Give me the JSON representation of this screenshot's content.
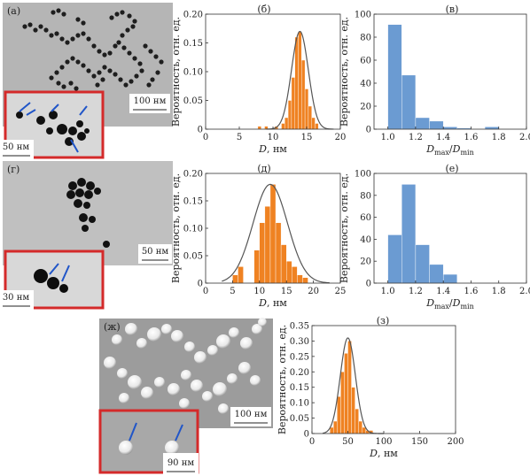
{
  "colors": {
    "orange_bar": "#ef8222",
    "blue_bar": "#6b9bd2",
    "fit_curve": "#555555",
    "inset_border": "#d42a2a",
    "arrow": "#2055c8"
  },
  "micrographs": [
    {
      "label": "(а)",
      "scalebar": "100 нм",
      "inset_scalebar": "50 нм"
    },
    {
      "label": "(г)",
      "scalebar": "50 нм",
      "inset_scalebar": "30 нм"
    },
    {
      "label": "(ж)",
      "scalebar": "100 нм",
      "inset_scalebar": "90 нм"
    }
  ],
  "chart_data": [
    {
      "panel": "(б)",
      "type": "bar",
      "xlabel": "D, нм",
      "ylabel": "Вероятность, отн. ед.",
      "xlim": [
        0,
        20
      ],
      "ylim": [
        0,
        0.2
      ],
      "xticks": [
        "0",
        "5",
        "10",
        "15",
        "20"
      ],
      "yticks": [
        "0",
        "0.05",
        "0.10",
        "0.15",
        "0.20"
      ],
      "bin_width": 0.5,
      "bars": [
        {
          "x": 8.0,
          "y": 0.005
        },
        {
          "x": 9.0,
          "y": 0.005
        },
        {
          "x": 10.5,
          "y": 0.005
        },
        {
          "x": 11.5,
          "y": 0.01
        },
        {
          "x": 12.0,
          "y": 0.02
        },
        {
          "x": 12.5,
          "y": 0.05
        },
        {
          "x": 13.0,
          "y": 0.09
        },
        {
          "x": 13.5,
          "y": 0.16
        },
        {
          "x": 14.0,
          "y": 0.17
        },
        {
          "x": 14.5,
          "y": 0.12
        },
        {
          "x": 15.0,
          "y": 0.07
        },
        {
          "x": 15.5,
          "y": 0.04
        },
        {
          "x": 16.0,
          "y": 0.02
        },
        {
          "x": 16.5,
          "y": 0.01
        }
      ],
      "fit": {
        "mean": 14.0,
        "sigma": 1.25,
        "peak": 0.17,
        "range": [
          9,
          19
        ]
      }
    },
    {
      "panel": "(в)",
      "type": "bar",
      "xlabel": "Dmax/Dmin",
      "ylabel": "Вероятность, отн. ед.",
      "xlim": [
        0.9,
        2.0
      ],
      "ylim": [
        0,
        100
      ],
      "xticks": [
        "1.0",
        "1.2",
        "1.4",
        "1.6",
        "1.8",
        "2.0"
      ],
      "yticks": [
        "0",
        "20",
        "40",
        "60",
        "80",
        "100"
      ],
      "bin_width": 0.1,
      "bars": [
        {
          "x": 1.05,
          "y": 91
        },
        {
          "x": 1.15,
          "y": 47
        },
        {
          "x": 1.25,
          "y": 10
        },
        {
          "x": 1.35,
          "y": 7
        },
        {
          "x": 1.45,
          "y": 2
        },
        {
          "x": 1.55,
          "y": 1
        },
        {
          "x": 1.75,
          "y": 2
        }
      ]
    },
    {
      "panel": "(д)",
      "type": "bar",
      "xlabel": "D, нм",
      "ylabel": "Вероятность, отн. ед.",
      "xlim": [
        0,
        25
      ],
      "ylim": [
        0,
        0.2
      ],
      "xticks": [
        "0",
        "5",
        "10",
        "15",
        "20",
        "25"
      ],
      "yticks": [
        "0",
        "0.05",
        "0.10",
        "0.15",
        "0.20"
      ],
      "bin_width": 1,
      "bars": [
        {
          "x": 5.5,
          "y": 0.015
        },
        {
          "x": 6.5,
          "y": 0.03
        },
        {
          "x": 9.5,
          "y": 0.06
        },
        {
          "x": 10.5,
          "y": 0.11
        },
        {
          "x": 11.5,
          "y": 0.14
        },
        {
          "x": 12.5,
          "y": 0.18
        },
        {
          "x": 13.5,
          "y": 0.11
        },
        {
          "x": 14.5,
          "y": 0.07
        },
        {
          "x": 15.5,
          "y": 0.04
        },
        {
          "x": 16.5,
          "y": 0.03
        },
        {
          "x": 17.5,
          "y": 0.015
        },
        {
          "x": 18.5,
          "y": 0.01
        }
      ],
      "fit": {
        "mean": 12.0,
        "sigma": 3.2,
        "peak": 0.18,
        "range": [
          3,
          23
        ]
      }
    },
    {
      "panel": "(е)",
      "type": "bar",
      "xlabel": "Dmax/Dmin",
      "ylabel": "Вероятность, отн. ед.",
      "xlim": [
        0.9,
        2.0
      ],
      "ylim": [
        0,
        100
      ],
      "xticks": [
        "1.0",
        "1.2",
        "1.4",
        "1.6",
        "1.8",
        "2.0"
      ],
      "yticks": [
        "0",
        "20",
        "40",
        "60",
        "80",
        "100"
      ],
      "bin_width": 0.1,
      "bars": [
        {
          "x": 1.05,
          "y": 44
        },
        {
          "x": 1.15,
          "y": 90
        },
        {
          "x": 1.25,
          "y": 35
        },
        {
          "x": 1.35,
          "y": 17
        },
        {
          "x": 1.45,
          "y": 8
        }
      ]
    },
    {
      "panel": "(з)",
      "type": "bar",
      "xlabel": "D, нм",
      "ylabel": "Вероятность, отн. ед.",
      "xlim": [
        0,
        200
      ],
      "ylim": [
        0,
        0.35
      ],
      "xticks": [
        "0",
        "50",
        "100",
        "150",
        "200"
      ],
      "yticks": [
        "0",
        "0.05",
        "0.10",
        "0.15",
        "0.20",
        "0.25",
        "0.30",
        "0.35"
      ],
      "bin_width": 5,
      "bars": [
        {
          "x": 27.5,
          "y": 0.02
        },
        {
          "x": 32.5,
          "y": 0.04
        },
        {
          "x": 37.5,
          "y": 0.12
        },
        {
          "x": 42.5,
          "y": 0.2
        },
        {
          "x": 47.5,
          "y": 0.26
        },
        {
          "x": 52.5,
          "y": 0.3
        },
        {
          "x": 57.5,
          "y": 0.15
        },
        {
          "x": 62.5,
          "y": 0.08
        },
        {
          "x": 67.5,
          "y": 0.04
        },
        {
          "x": 72.5,
          "y": 0.02
        },
        {
          "x": 77.5,
          "y": 0.01
        },
        {
          "x": 82.5,
          "y": 0.01
        }
      ],
      "fit": {
        "mean": 50.0,
        "sigma": 10.5,
        "peak": 0.31,
        "range": [
          15,
          100
        ]
      }
    }
  ]
}
